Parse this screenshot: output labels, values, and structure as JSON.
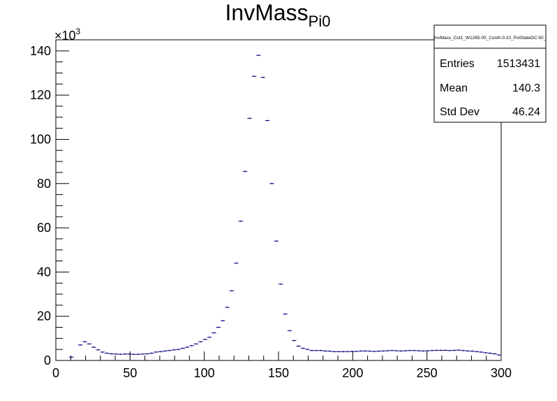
{
  "chart_data": {
    "type": "scatter",
    "style": "histogram-markers",
    "title": "InvMass",
    "title_subscript": "Pi0",
    "xlabel": "",
    "ylabel": "",
    "xlim": [
      0,
      300
    ],
    "ylim": [
      0,
      145
    ],
    "y_multiplier": "×10",
    "y_multiplier_exponent": "3",
    "x_ticks": [
      "0",
      "50",
      "100",
      "150",
      "200",
      "250",
      "300"
    ],
    "y_ticks": [
      "0",
      "20",
      "40",
      "60",
      "80",
      "100",
      "120",
      "140"
    ],
    "marker_color": "#000080",
    "grid": false,
    "bin_width": 3,
    "x": [
      10.5,
      16.5,
      19.5,
      22.5,
      25.5,
      28.5,
      31.5,
      34.5,
      37.5,
      40.5,
      43.5,
      46.5,
      49.5,
      52.5,
      55.5,
      58.5,
      61.5,
      64.5,
      67.5,
      70.5,
      73.5,
      76.5,
      79.5,
      82.5,
      85.5,
      88.5,
      91.5,
      94.5,
      97.5,
      100.5,
      103.5,
      106.5,
      109.5,
      112.5,
      115.5,
      118.5,
      121.5,
      124.5,
      127.5,
      130.5,
      133.5,
      136.5,
      139.5,
      142.5,
      145.5,
      148.5,
      151.5,
      154.5,
      157.5,
      160.5,
      163.5,
      166.5,
      169.5,
      172.5,
      175.5,
      178.5,
      181.5,
      184.5,
      187.5,
      190.5,
      193.5,
      196.5,
      199.5,
      202.5,
      205.5,
      208.5,
      211.5,
      214.5,
      217.5,
      220.5,
      223.5,
      226.5,
      229.5,
      232.5,
      235.5,
      238.5,
      241.5,
      244.5,
      247.5,
      250.5,
      253.5,
      256.5,
      259.5,
      262.5,
      265.5,
      268.5,
      271.5,
      274.5,
      277.5,
      280.5,
      283.5,
      286.5,
      289.5,
      292.5,
      295.5,
      298.5
    ],
    "values": [
      1.5,
      7.0,
      8.5,
      7.5,
      6.0,
      4.8,
      3.8,
      3.3,
      3.0,
      2.9,
      2.8,
      2.9,
      2.9,
      2.8,
      2.8,
      2.9,
      3.0,
      3.3,
      3.8,
      4.0,
      4.3,
      4.5,
      4.8,
      5.0,
      5.5,
      6.0,
      6.7,
      7.5,
      8.5,
      9.5,
      10.5,
      12.5,
      15.0,
      18.0,
      24.0,
      31.5,
      44.0,
      63.0,
      85.5,
      109.5,
      128.5,
      138.0,
      128.0,
      108.5,
      80.0,
      54.0,
      34.5,
      21.0,
      13.5,
      9.0,
      6.5,
      5.5,
      5.0,
      4.5,
      4.5,
      4.5,
      4.3,
      4.2,
      4.0,
      4.0,
      4.0,
      4.0,
      4.1,
      4.1,
      4.3,
      4.3,
      4.2,
      4.1,
      4.2,
      4.3,
      4.4,
      4.5,
      4.4,
      4.3,
      4.4,
      4.5,
      4.5,
      4.4,
      4.3,
      4.4,
      4.5,
      4.6,
      4.6,
      4.6,
      4.5,
      4.6,
      4.7,
      4.5,
      4.3,
      4.2,
      4.0,
      3.8,
      3.5,
      3.3,
      3.0,
      2.5
    ],
    "stats": {
      "name": "InvMass_Cut1_W1265.00_Costh-0.10_PolStateDC:50_",
      "rows": [
        {
          "label": "Entries",
          "value": "1513431"
        },
        {
          "label": "Mean",
          "value": "140.3"
        },
        {
          "label": "Std Dev",
          "value": "46.24"
        }
      ]
    }
  }
}
